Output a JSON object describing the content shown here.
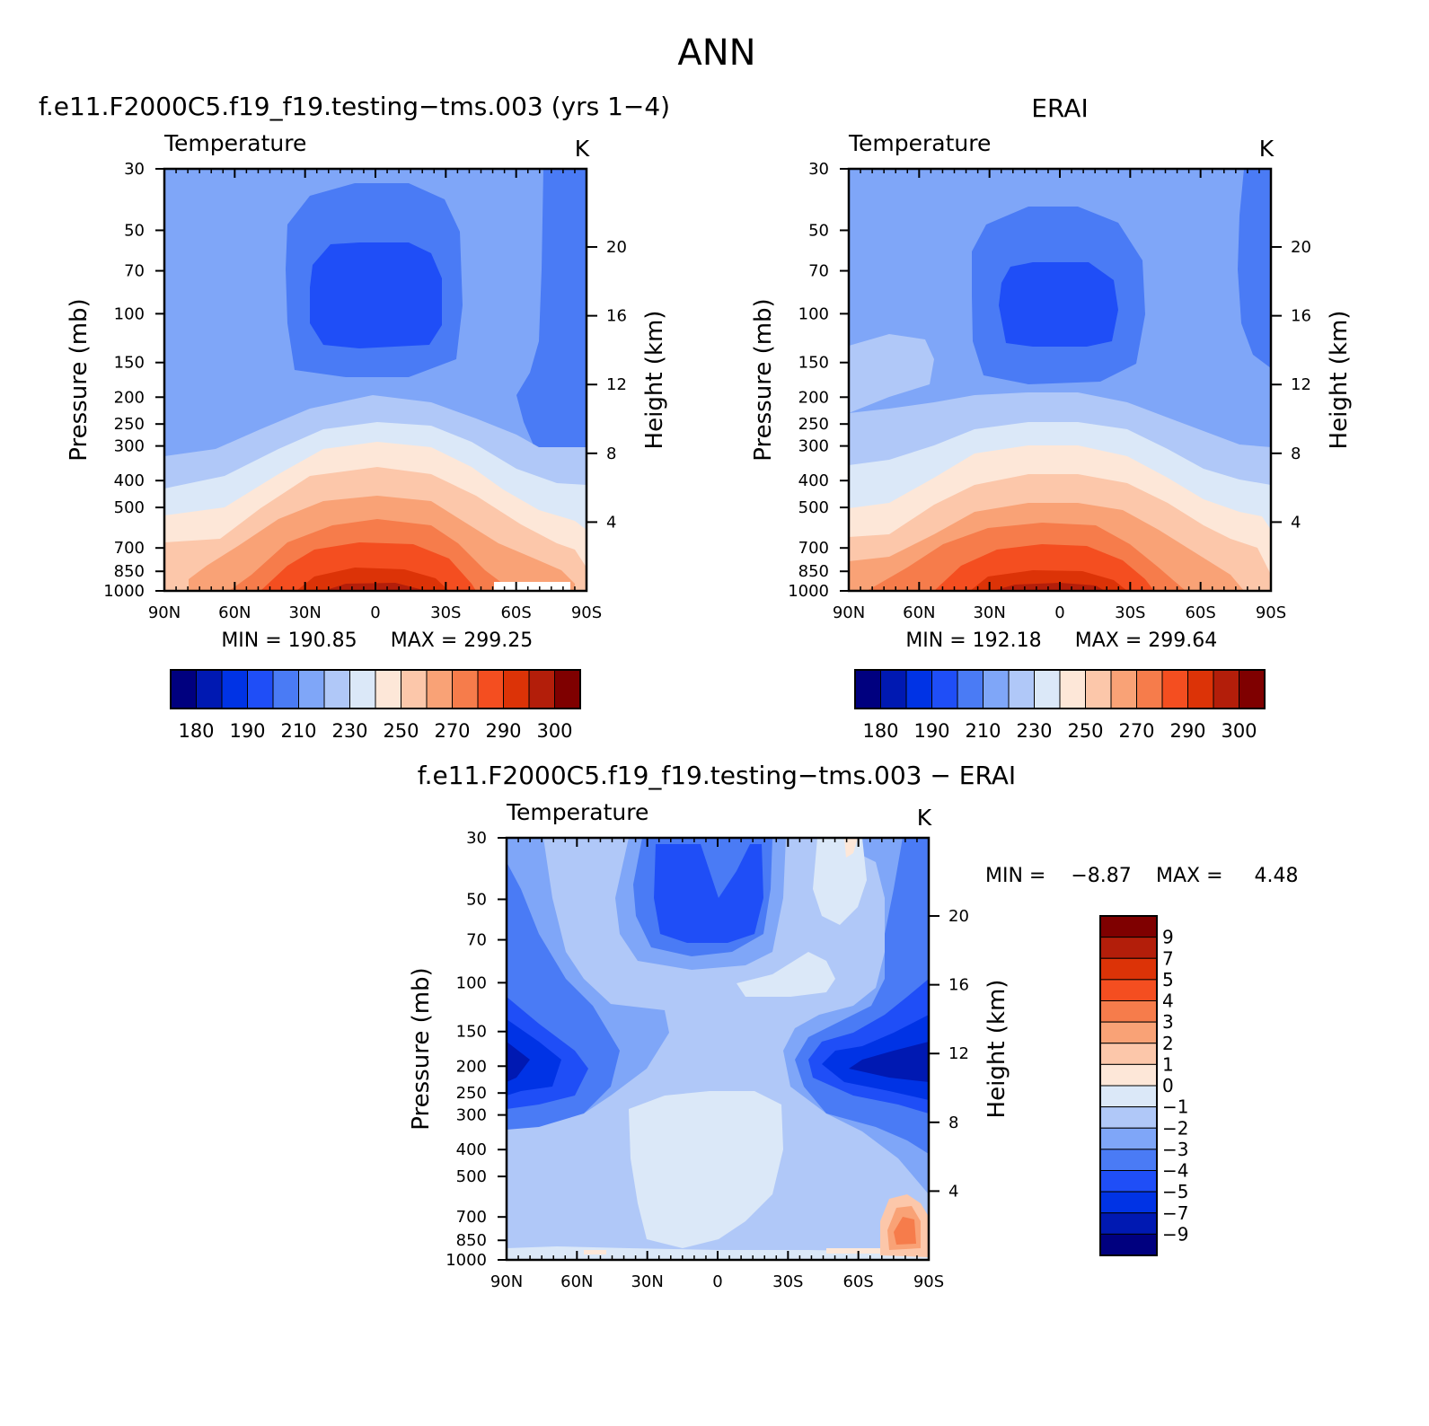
{
  "figure": {
    "title": "ANN",
    "panel1_title": "f.e11.F2000C5.f19_f19.testing−tms.003 (yrs 1−4)",
    "panel2_title": "ERAI",
    "panel3_title": "f.e11.F2000C5.f19_f19.testing−tms.003 − ERAI"
  },
  "chart_data": [
    {
      "type": "heatmap",
      "title": "f.e11.F2000C5.f19_f19.testing−tms.003 (yrs 1−4)",
      "variable_label": "Temperature",
      "units": "K",
      "ylabel": "Pressure (mb)",
      "y2label": "Height (km)",
      "xticks": [
        "90N",
        "60N",
        "30N",
        "0",
        "30S",
        "60S",
        "90S"
      ],
      "xrange": [
        90,
        -90
      ],
      "yticks": [
        30,
        50,
        70,
        100,
        150,
        200,
        250,
        300,
        400,
        500,
        700,
        850,
        1000
      ],
      "yrange": [
        30,
        1000
      ],
      "y_scale": "log",
      "y2ticks": [
        4,
        8,
        12,
        16,
        20
      ],
      "min_label": "MIN = 190.85",
      "max_label": "MAX = 299.25",
      "colorbar_orientation": "horizontal",
      "colorbar_labels": [
        "180",
        "190",
        "210",
        "230",
        "250",
        "270",
        "290",
        "300"
      ],
      "colorbar_colors": [
        "#00007f",
        "#0019b2",
        "#0033e5",
        "#1f4ef7",
        "#4a7bf5",
        "#7fa6f8",
        "#b0c8f8",
        "#dbe8f8",
        "#fde7d8",
        "#fcc7aa",
        "#f9a276",
        "#f67c4b",
        "#f44e20",
        "#dc3307",
        "#b31e0a",
        "#7f0000"
      ],
      "levels_k": [
        180,
        185,
        190,
        200,
        210,
        220,
        230,
        240,
        250,
        260,
        270,
        280,
        290,
        295,
        300
      ]
    },
    {
      "type": "heatmap",
      "title": "ERAI",
      "variable_label": "Temperature",
      "units": "K",
      "ylabel": "Pressure (mb)",
      "y2label": "Height (km)",
      "xticks": [
        "90N",
        "60N",
        "30N",
        "0",
        "30S",
        "60S",
        "90S"
      ],
      "xrange": [
        90,
        -90
      ],
      "yticks": [
        30,
        50,
        70,
        100,
        150,
        200,
        250,
        300,
        400,
        500,
        700,
        850,
        1000
      ],
      "yrange": [
        30,
        1000
      ],
      "y_scale": "log",
      "y2ticks": [
        4,
        8,
        12,
        16,
        20
      ],
      "min_label": "MIN = 192.18",
      "max_label": "MAX = 299.64",
      "colorbar_orientation": "horizontal",
      "colorbar_labels": [
        "180",
        "190",
        "210",
        "230",
        "250",
        "270",
        "290",
        "300"
      ],
      "colorbar_colors": [
        "#00007f",
        "#0019b2",
        "#0033e5",
        "#1f4ef7",
        "#4a7bf5",
        "#7fa6f8",
        "#b0c8f8",
        "#dbe8f8",
        "#fde7d8",
        "#fcc7aa",
        "#f9a276",
        "#f67c4b",
        "#f44e20",
        "#dc3307",
        "#b31e0a",
        "#7f0000"
      ],
      "levels_k": [
        180,
        185,
        190,
        200,
        210,
        220,
        230,
        240,
        250,
        260,
        270,
        280,
        290,
        295,
        300
      ]
    },
    {
      "type": "heatmap",
      "title": "f.e11.F2000C5.f19_f19.testing−tms.003 − ERAI",
      "variable_label": "Temperature",
      "units": "K",
      "ylabel": "Pressure (mb)",
      "y2label": "Height (km)",
      "xticks": [
        "90N",
        "60N",
        "30N",
        "0",
        "30S",
        "60S",
        "90S"
      ],
      "xrange": [
        90,
        -90
      ],
      "yticks": [
        30,
        50,
        70,
        100,
        150,
        200,
        250,
        300,
        400,
        500,
        700,
        850,
        1000
      ],
      "yrange": [
        30,
        1000
      ],
      "y_scale": "log",
      "y2ticks": [
        4,
        8,
        12,
        16,
        20
      ],
      "min_label": "MIN =    −8.87",
      "max_label": "MAX =     4.48",
      "colorbar_orientation": "vertical",
      "colorbar_labels": [
        "9",
        "7",
        "5",
        "4",
        "3",
        "2",
        "1",
        "0",
        "−1",
        "−2",
        "−3",
        "−4",
        "−5",
        "−7",
        "−9"
      ],
      "colorbar_colors": [
        "#7f0000",
        "#b31e0a",
        "#dc3307",
        "#f44e20",
        "#f67c4b",
        "#f9a276",
        "#fcc7aa",
        "#fde7d8",
        "#dbe8f8",
        "#b0c8f8",
        "#7fa6f8",
        "#4a7bf5",
        "#1f4ef7",
        "#0033e5",
        "#0019b2",
        "#00007f"
      ],
      "levels_k": [
        9,
        7,
        5,
        4,
        3,
        2,
        1,
        0,
        -1,
        -2,
        -3,
        -4,
        -5,
        -7,
        -9
      ]
    }
  ]
}
